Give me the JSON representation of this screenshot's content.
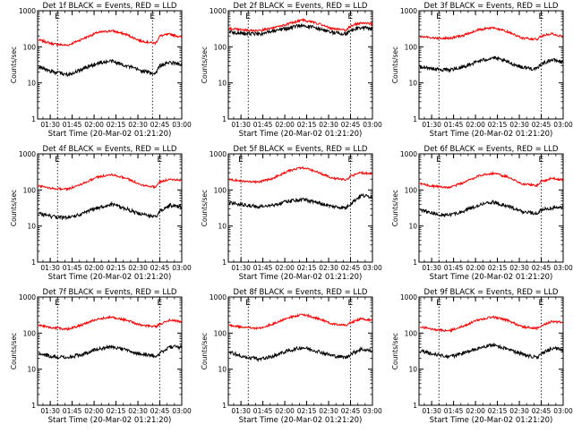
{
  "figure": {
    "panel_title_template": "Det {det} BLACK = Events, RED = LLD",
    "xlabel": "Start Time (20-Mar-02 01:21:20)",
    "ylabel": "Counts/sec",
    "colors": {
      "events": "#000000",
      "lld": "#ff0000",
      "frame": "#000000"
    }
  },
  "chart_data": [
    {
      "type": "line",
      "title": "Det 1f BLACK = Events, RED = LLD",
      "xlabel": "Start Time (20-Mar-02 01:21:20)",
      "ylabel": "Counts/sec",
      "y_scale": "log",
      "ylim": [
        1,
        1000
      ],
      "xlim": [
        "01:21:20",
        "03:00"
      ],
      "x_ticks": [
        "01:30",
        "01:45",
        "02:00",
        "02:15",
        "02:30",
        "02:45",
        "03:00"
      ],
      "y_ticks": [
        "1",
        "10",
        "100",
        "1000"
      ],
      "markers": [
        {
          "time": "01:35",
          "label": "E"
        },
        {
          "time": "02:40",
          "label": "E"
        }
      ],
      "series": [
        {
          "color": "red",
          "x": [
            "01:22",
            "01:32",
            "01:42",
            "01:52",
            "02:02",
            "02:12",
            "02:22",
            "02:32",
            "02:42",
            "02:45",
            "02:52",
            "03:00"
          ],
          "values": [
            155,
            120,
            110,
            165,
            245,
            280,
            220,
            145,
            125,
            200,
            225,
            185
          ]
        },
        {
          "color": "black",
          "x": [
            "01:22",
            "01:32",
            "01:42",
            "01:52",
            "02:02",
            "02:12",
            "02:22",
            "02:32",
            "02:42",
            "02:45",
            "02:52",
            "03:00"
          ],
          "values": [
            28,
            20,
            17,
            24,
            35,
            40,
            30,
            22,
            18,
            30,
            37,
            32
          ]
        }
      ]
    },
    {
      "type": "line",
      "title": "Det 2f BLACK = Events, RED = LLD",
      "xlabel": "Start Time (20-Mar-02 01:21:20)",
      "ylabel": "Counts/sec",
      "y_scale": "log",
      "ylim": [
        1,
        1000
      ],
      "xlim": [
        "01:21:20",
        "03:00"
      ],
      "x_ticks": [
        "01:30",
        "01:45",
        "02:00",
        "02:15",
        "02:30",
        "02:45",
        "03:00"
      ],
      "y_ticks": [
        "1",
        "10",
        "100",
        "1000"
      ],
      "markers": [
        {
          "time": "01:35",
          "label": "E"
        },
        {
          "time": "02:45",
          "label": "E"
        }
      ],
      "series": [
        {
          "color": "red",
          "x": [
            "01:22",
            "01:32",
            "01:42",
            "01:52",
            "02:02",
            "02:12",
            "02:22",
            "02:32",
            "02:42",
            "02:45",
            "02:52",
            "03:00"
          ],
          "values": [
            320,
            290,
            280,
            330,
            430,
            560,
            450,
            320,
            290,
            380,
            460,
            430
          ]
        },
        {
          "color": "black",
          "x": [
            "01:22",
            "01:32",
            "01:42",
            "01:52",
            "02:02",
            "02:12",
            "02:22",
            "02:32",
            "02:42",
            "02:45",
            "02:52",
            "03:00"
          ],
          "values": [
            260,
            235,
            225,
            265,
            330,
            400,
            330,
            250,
            230,
            290,
            340,
            320
          ]
        }
      ]
    },
    {
      "type": "line",
      "title": "Det 3f BLACK = Events, RED = LLD",
      "xlabel": "Start Time (20-Mar-02 01:21:20)",
      "ylabel": "Counts/sec",
      "y_scale": "log",
      "ylim": [
        1,
        1000
      ],
      "xlim": [
        "01:21:20",
        "03:00"
      ],
      "x_ticks": [
        "01:30",
        "01:45",
        "02:00",
        "02:15",
        "02:30",
        "02:45",
        "03:00"
      ],
      "y_ticks": [
        "1",
        "10",
        "100",
        "1000"
      ],
      "markers": [
        {
          "time": "01:35",
          "label": "E"
        },
        {
          "time": "02:45",
          "label": "E"
        }
      ],
      "series": [
        {
          "color": "red",
          "x": [
            "01:22",
            "01:32",
            "01:42",
            "01:52",
            "02:02",
            "02:12",
            "02:22",
            "02:32",
            "02:42",
            "02:45",
            "02:52",
            "03:00"
          ],
          "values": [
            195,
            175,
            170,
            210,
            300,
            340,
            260,
            175,
            160,
            200,
            230,
            190
          ]
        },
        {
          "color": "black",
          "x": [
            "01:22",
            "01:32",
            "01:42",
            "01:52",
            "02:02",
            "02:12",
            "02:22",
            "02:32",
            "02:42",
            "02:45",
            "02:52",
            "03:00"
          ],
          "values": [
            28,
            24,
            23,
            28,
            40,
            50,
            38,
            27,
            24,
            33,
            44,
            38
          ]
        }
      ]
    },
    {
      "type": "line",
      "title": "Det 4f BLACK = Events, RED = LLD",
      "xlabel": "Start Time (20-Mar-02 01:21:20)",
      "ylabel": "Counts/sec",
      "y_scale": "log",
      "ylim": [
        1,
        1000
      ],
      "xlim": [
        "01:21:20",
        "03:00"
      ],
      "x_ticks": [
        "01:30",
        "01:45",
        "02:00",
        "02:15",
        "02:30",
        "02:45",
        "03:00"
      ],
      "y_ticks": [
        "1",
        "10",
        "100",
        "1000"
      ],
      "markers": [
        {
          "time": "01:35",
          "label": "E"
        },
        {
          "time": "02:45",
          "label": "E"
        }
      ],
      "series": [
        {
          "color": "red",
          "x": [
            "01:22",
            "01:32",
            "01:42",
            "01:52",
            "02:02",
            "02:12",
            "02:22",
            "02:32",
            "02:42",
            "02:45",
            "02:52",
            "03:00"
          ],
          "values": [
            130,
            110,
            105,
            150,
            225,
            270,
            210,
            140,
            120,
            165,
            200,
            185
          ]
        },
        {
          "color": "black",
          "x": [
            "01:22",
            "01:32",
            "01:42",
            "01:52",
            "02:02",
            "02:12",
            "02:22",
            "02:32",
            "02:42",
            "02:45",
            "02:52",
            "03:00"
          ],
          "values": [
            22,
            18,
            17,
            22,
            32,
            40,
            30,
            21,
            18,
            25,
            38,
            34
          ]
        }
      ]
    },
    {
      "type": "line",
      "title": "Det 5f BLACK = Events, RED = LLD",
      "xlabel": "Start Time (20-Mar-02 01:21:20)",
      "ylabel": "Counts/sec",
      "y_scale": "log",
      "ylim": [
        1,
        1000
      ],
      "xlim": [
        "01:21:20",
        "03:00"
      ],
      "x_ticks": [
        "01:30",
        "01:45",
        "02:00",
        "02:15",
        "02:30",
        "02:45",
        "03:00"
      ],
      "y_ticks": [
        "1",
        "10",
        "100",
        "1000"
      ],
      "markers": [
        {
          "time": "01:30",
          "label": "E"
        },
        {
          "time": "02:45",
          "label": "E"
        }
      ],
      "series": [
        {
          "color": "red",
          "x": [
            "01:22",
            "01:32",
            "01:42",
            "01:52",
            "02:02",
            "02:12",
            "02:22",
            "02:32",
            "02:42",
            "02:45",
            "02:52",
            "03:00"
          ],
          "values": [
            195,
            175,
            165,
            210,
            330,
            420,
            320,
            215,
            190,
            240,
            300,
            280
          ]
        },
        {
          "color": "black",
          "x": [
            "01:22",
            "01:32",
            "01:42",
            "01:52",
            "02:02",
            "02:12",
            "02:22",
            "02:32",
            "02:42",
            "02:45",
            "02:52",
            "03:00"
          ],
          "values": [
            45,
            38,
            34,
            38,
            48,
            55,
            45,
            35,
            32,
            42,
            70,
            65
          ]
        }
      ]
    },
    {
      "type": "line",
      "title": "Det 6f BLACK = Events, RED = LLD",
      "xlabel": "Start Time (20-Mar-02 01:21:20)",
      "ylabel": "Counts/sec",
      "y_scale": "log",
      "ylim": [
        1,
        1000
      ],
      "xlim": [
        "01:21:20",
        "03:00"
      ],
      "x_ticks": [
        "01:30",
        "01:45",
        "02:00",
        "02:15",
        "02:30",
        "02:45",
        "03:00"
      ],
      "y_ticks": [
        "1",
        "10",
        "100",
        "1000"
      ],
      "markers": [
        {
          "time": "01:35",
          "label": "E"
        },
        {
          "time": "02:45",
          "label": "E"
        }
      ],
      "series": [
        {
          "color": "red",
          "x": [
            "01:22",
            "01:32",
            "01:42",
            "01:52",
            "02:02",
            "02:12",
            "02:22",
            "02:32",
            "02:42",
            "02:45",
            "02:52",
            "03:00"
          ],
          "values": [
            150,
            125,
            115,
            160,
            245,
            290,
            230,
            150,
            130,
            170,
            210,
            190
          ]
        },
        {
          "color": "black",
          "x": [
            "01:22",
            "01:32",
            "01:42",
            "01:52",
            "02:02",
            "02:12",
            "02:22",
            "02:32",
            "02:42",
            "02:45",
            "02:52",
            "03:00"
          ],
          "values": [
            28,
            22,
            20,
            26,
            38,
            46,
            36,
            25,
            22,
            28,
            32,
            34
          ]
        }
      ]
    },
    {
      "type": "line",
      "title": "Det 7f BLACK = Events, RED = LLD",
      "xlabel": "Start Time (20-Mar-02 01:21:20)",
      "ylabel": "Counts/sec",
      "y_scale": "log",
      "ylim": [
        1,
        1000
      ],
      "xlim": [
        "01:21:20",
        "03:00"
      ],
      "x_ticks": [
        "01:30",
        "01:45",
        "02:00",
        "02:15",
        "02:30",
        "02:45",
        "03:00"
      ],
      "y_ticks": [
        "1",
        "10",
        "100",
        "1000"
      ],
      "markers": [
        {
          "time": "01:35",
          "label": "E"
        },
        {
          "time": "02:45",
          "label": "E"
        }
      ],
      "series": [
        {
          "color": "red",
          "x": [
            "01:22",
            "01:32",
            "01:42",
            "01:52",
            "02:02",
            "02:12",
            "02:22",
            "02:32",
            "02:42",
            "02:45",
            "02:52",
            "03:00"
          ],
          "values": [
            165,
            140,
            130,
            170,
            245,
            280,
            230,
            165,
            150,
            175,
            230,
            210
          ]
        },
        {
          "color": "black",
          "x": [
            "01:22",
            "01:32",
            "01:42",
            "01:52",
            "02:02",
            "02:12",
            "02:22",
            "02:32",
            "02:42",
            "02:45",
            "02:52",
            "03:00"
          ],
          "values": [
            28,
            22,
            21,
            26,
            36,
            42,
            34,
            26,
            23,
            28,
            42,
            40
          ]
        }
      ]
    },
    {
      "type": "line",
      "title": "Det 8f BLACK = Events, RED = LLD",
      "xlabel": "Start Time (20-Mar-02 01:21:20)",
      "ylabel": "Counts/sec",
      "y_scale": "log",
      "ylim": [
        1,
        1000
      ],
      "xlim": [
        "01:21:20",
        "03:00"
      ],
      "x_ticks": [
        "01:30",
        "01:45",
        "02:00",
        "02:15",
        "02:30",
        "02:45",
        "03:00"
      ],
      "y_ticks": [
        "1",
        "10",
        "100",
        "1000"
      ],
      "markers": [
        {
          "time": "01:35",
          "label": "E"
        },
        {
          "time": "02:45",
          "label": "E"
        }
      ],
      "series": [
        {
          "color": "red",
          "x": [
            "01:22",
            "01:32",
            "01:42",
            "01:52",
            "02:02",
            "02:12",
            "02:22",
            "02:32",
            "02:42",
            "02:45",
            "02:52",
            "03:00"
          ],
          "values": [
            165,
            145,
            135,
            180,
            265,
            330,
            260,
            185,
            165,
            195,
            250,
            225
          ]
        },
        {
          "color": "black",
          "x": [
            "01:22",
            "01:32",
            "01:42",
            "01:52",
            "02:02",
            "02:12",
            "02:22",
            "02:32",
            "02:42",
            "02:45",
            "02:52",
            "03:00"
          ],
          "values": [
            30,
            22,
            19,
            23,
            32,
            40,
            32,
            24,
            21,
            26,
            36,
            32
          ]
        }
      ]
    },
    {
      "type": "line",
      "title": "Det 9f BLACK = Events, RED = LLD",
      "xlabel": "Start Time (20-Mar-02 01:21:20)",
      "ylabel": "Counts/sec",
      "y_scale": "log",
      "ylim": [
        1,
        1000
      ],
      "xlim": [
        "01:21:20",
        "03:00"
      ],
      "x_ticks": [
        "01:30",
        "01:45",
        "02:00",
        "02:15",
        "02:30",
        "02:45",
        "03:00"
      ],
      "y_ticks": [
        "1",
        "10",
        "100",
        "1000"
      ],
      "markers": [
        {
          "time": "01:35",
          "label": "E"
        },
        {
          "time": "02:45",
          "label": "E"
        }
      ],
      "series": [
        {
          "color": "red",
          "x": [
            "01:22",
            "01:32",
            "01:42",
            "01:52",
            "02:02",
            "02:12",
            "02:22",
            "02:32",
            "02:42",
            "02:45",
            "02:52",
            "03:00"
          ],
          "values": [
            150,
            125,
            115,
            160,
            235,
            280,
            225,
            150,
            135,
            160,
            210,
            200
          ]
        },
        {
          "color": "black",
          "x": [
            "01:22",
            "01:32",
            "01:42",
            "01:52",
            "02:02",
            "02:12",
            "02:22",
            "02:32",
            "02:42",
            "02:45",
            "02:52",
            "03:00"
          ],
          "values": [
            32,
            26,
            22,
            28,
            38,
            48,
            36,
            26,
            21,
            26,
            38,
            35
          ]
        }
      ]
    }
  ]
}
